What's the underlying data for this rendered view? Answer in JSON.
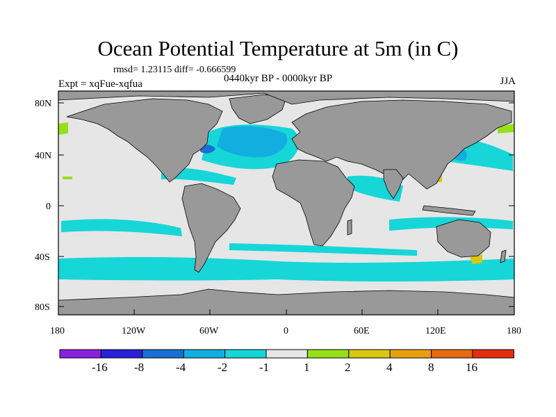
{
  "title": "Ocean Potential Temperature at 5m (in C)",
  "stats_line": "rmsd= 1.23115 diff= -0.666599",
  "period": "0440kyr BP - 0000kyr BP",
  "experiment": "Expt = xqFue-xqfua",
  "season": "JJA",
  "y_ticks": [
    "80N",
    "40N",
    "0",
    "40S",
    "80S"
  ],
  "x_ticks": [
    "180",
    "120W",
    "60W",
    "0",
    "60E",
    "120E",
    "180"
  ],
  "colorbar": {
    "labels": [
      "-16",
      "-8",
      "-4",
      "-2",
      "-1",
      "1",
      "2",
      "4",
      "8",
      "16"
    ],
    "colors": [
      "#8a1fe0",
      "#2a20d8",
      "#1a6fd6",
      "#12aee0",
      "#16d6d8",
      "#e6e6e6",
      "#96e01a",
      "#d8c814",
      "#e8a010",
      "#e66a10",
      "#e23010"
    ]
  },
  "colors": {
    "land": "#999999",
    "ocean_neutral": "#e6e6e6",
    "coast": "#000000"
  }
}
